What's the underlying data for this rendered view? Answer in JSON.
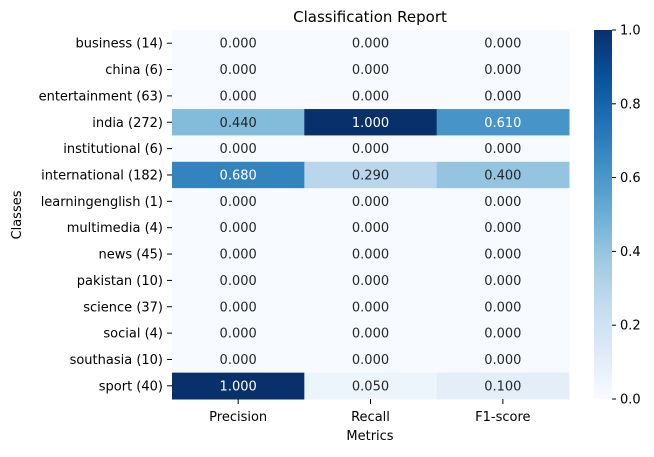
{
  "chart_data": {
    "type": "heatmap",
    "title": "Classification Report",
    "xlabel": "Metrics",
    "ylabel": "Classes",
    "columns": [
      "Precision",
      "Recall",
      "F1-score"
    ],
    "rows": [
      "business (14)",
      "china (6)",
      "entertainment (63)",
      "india (272)",
      "institutional (6)",
      "international (182)",
      "learningenglish (1)",
      "multimedia (4)",
      "news (45)",
      "pakistan (10)",
      "science (37)",
      "social (4)",
      "southasia (10)",
      "sport (40)"
    ],
    "values": [
      [
        0.0,
        0.0,
        0.0
      ],
      [
        0.0,
        0.0,
        0.0
      ],
      [
        0.0,
        0.0,
        0.0
      ],
      [
        0.44,
        1.0,
        0.61
      ],
      [
        0.0,
        0.0,
        0.0
      ],
      [
        0.68,
        0.29,
        0.4
      ],
      [
        0.0,
        0.0,
        0.0
      ],
      [
        0.0,
        0.0,
        0.0
      ],
      [
        0.0,
        0.0,
        0.0
      ],
      [
        0.0,
        0.0,
        0.0
      ],
      [
        0.0,
        0.0,
        0.0
      ],
      [
        0.0,
        0.0,
        0.0
      ],
      [
        0.0,
        0.0,
        0.0
      ],
      [
        1.0,
        0.05,
        0.1
      ]
    ],
    "cell_labels": [
      [
        "0.000",
        "0.000",
        "0.000"
      ],
      [
        "0.000",
        "0.000",
        "0.000"
      ],
      [
        "0.000",
        "0.000",
        "0.000"
      ],
      [
        "0.440",
        "1.000",
        "0.610"
      ],
      [
        "0.000",
        "0.000",
        "0.000"
      ],
      [
        "0.680",
        "0.290",
        "0.400"
      ],
      [
        "0.000",
        "0.000",
        "0.000"
      ],
      [
        "0.000",
        "0.000",
        "0.000"
      ],
      [
        "0.000",
        "0.000",
        "0.000"
      ],
      [
        "0.000",
        "0.000",
        "0.000"
      ],
      [
        "0.000",
        "0.000",
        "0.000"
      ],
      [
        "0.000",
        "0.000",
        "0.000"
      ],
      [
        "0.000",
        "0.000",
        "0.000"
      ],
      [
        "1.000",
        "0.050",
        "0.100"
      ]
    ],
    "colormap": "Blues",
    "vmin": 0.0,
    "vmax": 1.0,
    "colorbar_ticks": [
      0.0,
      0.2,
      0.4,
      0.6,
      0.8,
      1.0
    ],
    "colorbar_tick_labels": [
      "0.0",
      "0.2",
      "0.4",
      "0.6",
      "0.8",
      "1.0"
    ],
    "grid": false
  }
}
